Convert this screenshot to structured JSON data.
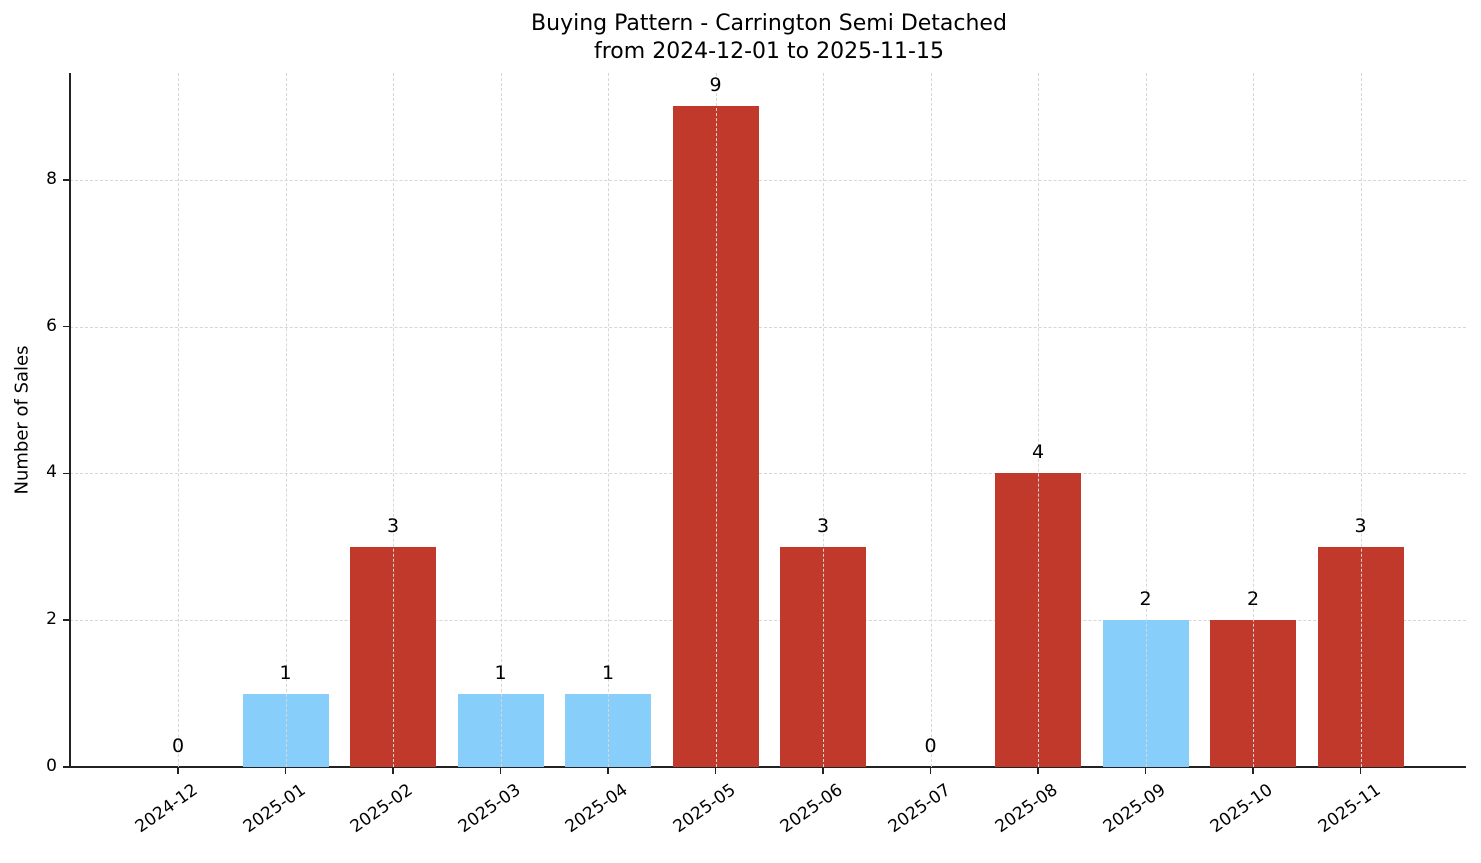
{
  "chart_data": {
    "type": "bar",
    "title": "Buying Pattern - Carrington Semi Detached",
    "subtitle": "from 2024-12-01 to 2025-11-15",
    "xlabel": "",
    "ylabel": "Number of Sales",
    "ylim": [
      0,
      9.45
    ],
    "yticks": [
      0,
      2,
      4,
      6,
      8
    ],
    "grid": true,
    "legend": null,
    "categories": [
      "2024-12",
      "2025-01",
      "2025-02",
      "2025-03",
      "2025-04",
      "2025-05",
      "2025-06",
      "2025-07",
      "2025-08",
      "2025-09",
      "2025-10",
      "2025-11"
    ],
    "values": [
      0,
      1,
      3,
      1,
      1,
      9,
      3,
      0,
      4,
      2,
      2,
      3
    ],
    "bar_colors": [
      "#87cefa",
      "#87cefa",
      "#c0392b",
      "#87cefa",
      "#87cefa",
      "#c0392b",
      "#c0392b",
      "#87cefa",
      "#c0392b",
      "#87cefa",
      "#c0392b",
      "#c0392b"
    ],
    "colors": {
      "high": "#c0392b",
      "low": "#87cefa"
    },
    "data_labels": [
      "0",
      "1",
      "3",
      "1",
      "1",
      "9",
      "3",
      "0",
      "4",
      "2",
      "2",
      "3"
    ]
  }
}
